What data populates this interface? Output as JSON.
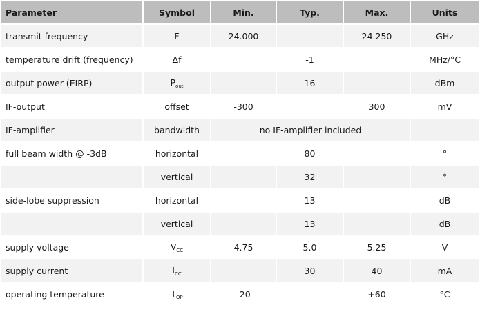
{
  "headers": [
    "Parameter",
    "Symbol",
    "Min.",
    "Typ.",
    "Max.",
    "Units"
  ],
  "rows": [
    {
      "parameter": "transmit frequency",
      "symbol": "F",
      "symbol_sub": "",
      "min": "24.000",
      "typ": "",
      "max": "24.250",
      "units": "GHz"
    },
    {
      "parameter": "temperature drift (frequency)",
      "symbol": "Δf",
      "symbol_sub": "",
      "min": "",
      "typ": "-1",
      "max": "",
      "units": "MHz/°C"
    },
    {
      "parameter": "output power (EIRP)",
      "symbol": "P",
      "symbol_sub": "out",
      "min": "",
      "typ": "16",
      "max": "",
      "units": "dBm"
    },
    {
      "parameter": "IF-output",
      "symbol": "offset",
      "symbol_sub": "",
      "min": "-300",
      "typ": "",
      "max": "300",
      "units": "mV"
    },
    {
      "parameter": "IF-amplifier",
      "symbol": "bandwidth",
      "symbol_sub": "",
      "span_text": "no IF-amplifier included",
      "units": ""
    },
    {
      "parameter": "full beam width @ -3dB",
      "symbol": "horizontal",
      "symbol_sub": "",
      "min": "",
      "typ": "80",
      "max": "",
      "units": "°"
    },
    {
      "parameter": "",
      "symbol": "vertical",
      "symbol_sub": "",
      "min": "",
      "typ": "32",
      "max": "",
      "units": "°"
    },
    {
      "parameter": "side-lobe suppression",
      "symbol": "horizontal",
      "symbol_sub": "",
      "min": "",
      "typ": "13",
      "max": "",
      "units": "dB"
    },
    {
      "parameter": "",
      "symbol": "vertical",
      "symbol_sub": "",
      "min": "",
      "typ": "13",
      "max": "",
      "units": "dB"
    },
    {
      "parameter": "supply voltage",
      "symbol": "V",
      "symbol_sub": "CC",
      "min": "4.75",
      "typ": "5.0",
      "max": "5.25",
      "units": "V"
    },
    {
      "parameter": "supply current",
      "symbol": "I",
      "symbol_sub": "CC",
      "min": "",
      "typ": "30",
      "max": "40",
      "units": "mA"
    },
    {
      "parameter": "operating temperature",
      "symbol": "T",
      "symbol_sub": "OP",
      "min": "-20",
      "typ": "",
      "max": "+60",
      "units": "°C"
    }
  ]
}
